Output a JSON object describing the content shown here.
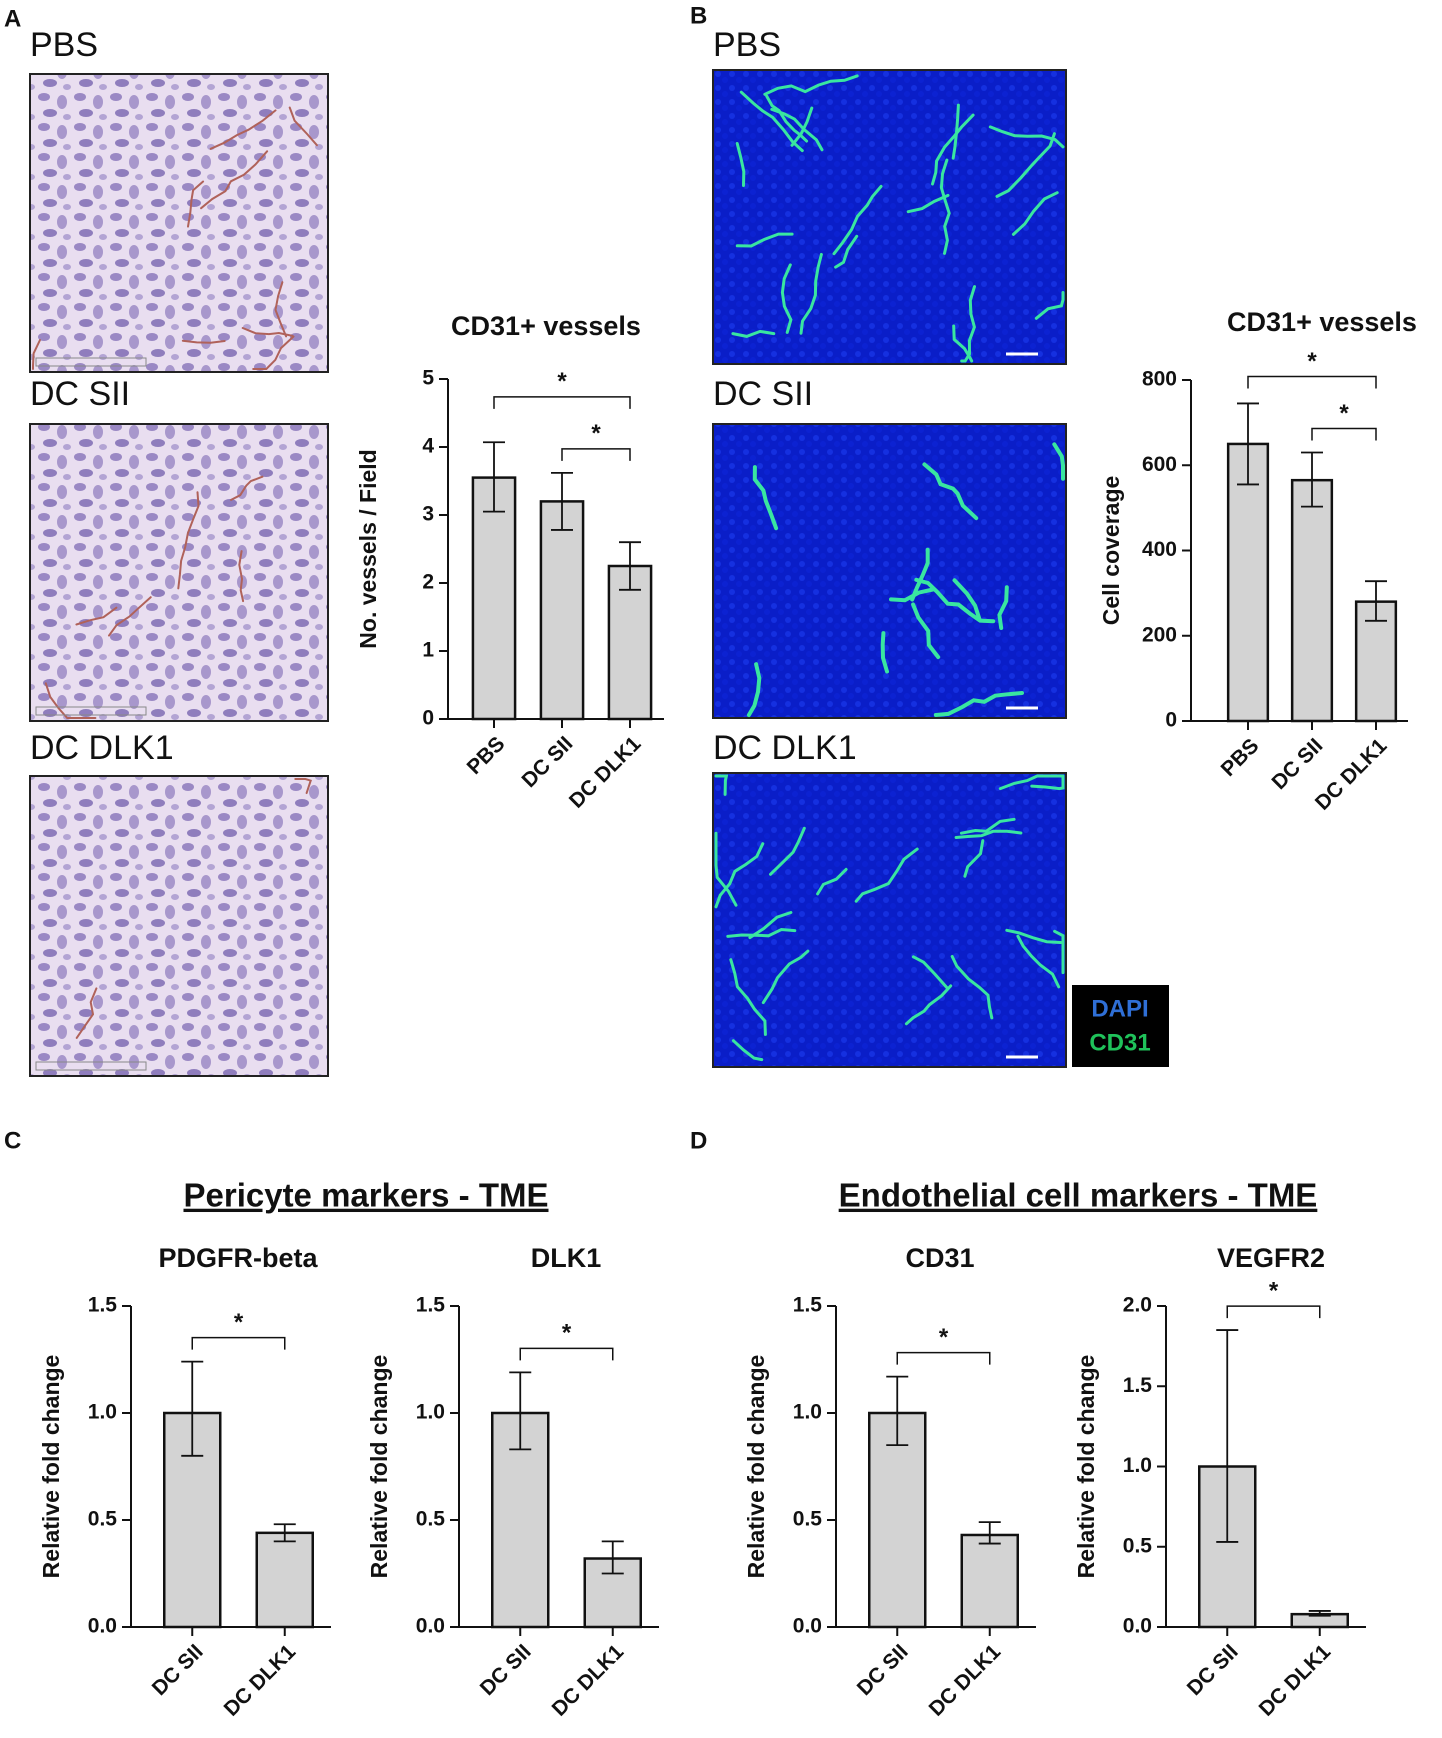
{
  "panels": {
    "A": {
      "label": "A",
      "images": [
        "PBS",
        "DC SII",
        "DC DLK1"
      ]
    },
    "B": {
      "label": "B",
      "images": [
        "PBS",
        "DC SII",
        "DC DLK1"
      ],
      "legend": [
        {
          "label": "DAPI",
          "color": "#2f6fd6"
        },
        {
          "label": "CD31",
          "color": "#1fc25a"
        }
      ]
    },
    "C": {
      "label": "C",
      "heading": "Pericyte markers - TME"
    },
    "D": {
      "label": "D",
      "heading": "Endothelial cell markers - TME"
    }
  },
  "chart_data": [
    {
      "type": "bar",
      "title": "CD31+ vessels",
      "ylabel": "No. vessels / Field",
      "categories": [
        "PBS",
        "DC SII",
        "DC DLK1"
      ],
      "values": [
        3.55,
        3.2,
        2.25
      ],
      "err_minus": [
        0.5,
        0.42,
        0.35
      ],
      "err_plus": [
        0.52,
        0.42,
        0.35
      ],
      "color": "#d3d3d3",
      "ylim": [
        0,
        5
      ],
      "yticks": [
        0,
        1,
        2,
        3,
        4,
        5
      ],
      "brackets": [
        {
          "between": [
            "DC SII",
            "DC DLK1"
          ],
          "label": "*"
        },
        {
          "between": [
            "PBS",
            "DC DLK1"
          ],
          "label": "*"
        }
      ]
    },
    {
      "type": "bar",
      "title": "CD31+ vessels",
      "ylabel": "Cell coverage",
      "categories": [
        "PBS",
        "DC SII",
        "DC DLK1"
      ],
      "values": [
        650,
        565,
        280
      ],
      "err_minus": [
        95,
        62,
        45
      ],
      "err_plus": [
        95,
        65,
        48
      ],
      "color": "#d3d3d3",
      "ylim": [
        0,
        800
      ],
      "yticks": [
        0,
        200,
        400,
        600,
        800
      ],
      "brackets": [
        {
          "between": [
            "DC SII",
            "DC DLK1"
          ],
          "label": "*"
        },
        {
          "between": [
            "PBS",
            "DC DLK1"
          ],
          "label": "*"
        }
      ]
    },
    {
      "type": "bar",
      "title": "PDGFR-beta",
      "ylabel": "Relative fold change",
      "categories": [
        "DC SII",
        "DC DLK1"
      ],
      "values": [
        1.0,
        0.44
      ],
      "err_minus": [
        0.2,
        0.04
      ],
      "err_plus": [
        0.24,
        0.04
      ],
      "color": "#d3d3d3",
      "ylim": [
        0,
        1.5
      ],
      "yticks": [
        {
          "value": 0,
          "label": "0.0"
        },
        {
          "value": 0.5,
          "label": "0.5"
        },
        {
          "value": 1,
          "label": "1.0"
        },
        {
          "value": 1.5,
          "label": "1.5"
        }
      ],
      "brackets": [
        {
          "between": [
            "DC SII",
            "DC DLK1"
          ],
          "label": "*"
        }
      ]
    },
    {
      "type": "bar",
      "title": "DLK1",
      "ylabel": "Relative fold change",
      "categories": [
        "DC SII",
        "DC DLK1"
      ],
      "values": [
        1.0,
        0.32
      ],
      "err_minus": [
        0.17,
        0.07
      ],
      "err_plus": [
        0.19,
        0.08
      ],
      "color": "#d3d3d3",
      "ylim": [
        0,
        1.5
      ],
      "yticks": [
        {
          "value": 0,
          "label": "0.0"
        },
        {
          "value": 0.5,
          "label": "0.5"
        },
        {
          "value": 1,
          "label": "1.0"
        },
        {
          "value": 1.5,
          "label": "1.5"
        }
      ],
      "brackets": [
        {
          "between": [
            "DC SII",
            "DC DLK1"
          ],
          "label": "*"
        }
      ]
    },
    {
      "type": "bar",
      "title": "CD31",
      "ylabel": "Relative fold change",
      "categories": [
        "DC SII",
        "DC DLK1"
      ],
      "values": [
        1.0,
        0.43
      ],
      "err_minus": [
        0.15,
        0.04
      ],
      "err_plus": [
        0.17,
        0.06
      ],
      "color": "#d3d3d3",
      "ylim": [
        0,
        1.5
      ],
      "yticks": [
        {
          "value": 0,
          "label": "0.0"
        },
        {
          "value": 0.5,
          "label": "0.5"
        },
        {
          "value": 1,
          "label": "1.0"
        },
        {
          "value": 1.5,
          "label": "1.5"
        }
      ],
      "brackets": [
        {
          "between": [
            "DC SII",
            "DC DLK1"
          ],
          "label": "*"
        }
      ]
    },
    {
      "type": "bar",
      "title": "VEGFR2",
      "ylabel": "Relative fold change",
      "categories": [
        "DC SII",
        "DC DLK1"
      ],
      "values": [
        1.0,
        0.08
      ],
      "err_minus": [
        0.47,
        0.01
      ],
      "err_plus": [
        0.85,
        0.02
      ],
      "color": "#d3d3d3",
      "ylim": [
        0,
        2
      ],
      "yticks": [
        {
          "value": 0,
          "label": "0.0"
        },
        {
          "value": 0.5,
          "label": "0.5"
        },
        {
          "value": 1,
          "label": "1.0"
        },
        {
          "value": 1.5,
          "label": "1.5"
        },
        {
          "value": 2,
          "label": "2.0"
        }
      ],
      "brackets": [
        {
          "between": [
            "DC SII",
            "DC DLK1"
          ],
          "label": "*"
        }
      ]
    }
  ]
}
